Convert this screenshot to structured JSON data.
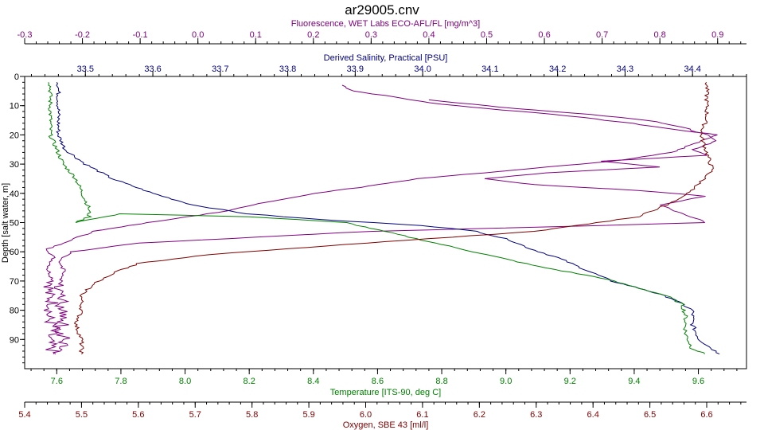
{
  "chart_data": {
    "type": "line",
    "title": "ar29005.cnv",
    "axes": {
      "depth": {
        "label": "Depth [salt water, m]",
        "range": [
          0,
          100
        ],
        "ticks": [
          0,
          10,
          20,
          30,
          40,
          50,
          60,
          70,
          80,
          90
        ],
        "reversed": true,
        "color": "#000000"
      },
      "fluorescence": {
        "label": "Fluorescence, WET Labs ECO-AFL/FL [mg/m^3]",
        "range": [
          -0.3,
          0.95
        ],
        "ticks": [
          -0.3,
          -0.2,
          -0.1,
          0.0,
          0.1,
          0.2,
          0.3,
          0.4,
          0.5,
          0.6,
          0.7,
          0.8,
          0.9
        ],
        "position": "top-outer",
        "color": "#800080"
      },
      "salinity": {
        "label": "Derived Salinity, Practical [PSU]",
        "range": [
          33.41,
          34.48
        ],
        "ticks": [
          33.5,
          33.6,
          33.7,
          33.8,
          33.9,
          34.0,
          34.1,
          34.2,
          34.3,
          34.4
        ],
        "position": "top-inner",
        "color": "#000080"
      },
      "temperature": {
        "label": "Temperature [ITS-90, deg C]",
        "range": [
          7.5,
          9.75
        ],
        "ticks": [
          7.6,
          7.8,
          8.0,
          8.2,
          8.4,
          8.6,
          8.8,
          9.0,
          9.2,
          9.4,
          9.6
        ],
        "position": "bottom-inner",
        "color": "#008000"
      },
      "oxygen": {
        "label": "Oxygen, SBE 43 [ml/l]",
        "range": [
          5.4,
          6.67
        ],
        "ticks": [
          5.4,
          5.5,
          5.6,
          5.7,
          5.8,
          5.9,
          6.0,
          6.1,
          6.2,
          6.3,
          6.4,
          6.5,
          6.6
        ],
        "position": "bottom-outer",
        "color": "#800000"
      }
    },
    "grid": false,
    "legend": "none",
    "series": [
      {
        "axis": "fluorescence",
        "color": "#800080",
        "style": "up",
        "points": [
          [
            0.25,
            3
          ],
          [
            0.27,
            5
          ],
          [
            0.34,
            7
          ],
          [
            0.4,
            9
          ],
          [
            0.5,
            11
          ],
          [
            0.62,
            13
          ],
          [
            0.75,
            16
          ],
          [
            0.82,
            18
          ],
          [
            0.9,
            20
          ],
          [
            0.86,
            23
          ],
          [
            0.82,
            26
          ],
          [
            0.72,
            29
          ],
          [
            0.55,
            32
          ],
          [
            0.38,
            35
          ],
          [
            0.28,
            38
          ],
          [
            0.2,
            40
          ],
          [
            0.12,
            43
          ],
          [
            0.05,
            46
          ],
          [
            -0.05,
            49
          ],
          [
            -0.12,
            51
          ],
          [
            -0.18,
            53
          ],
          [
            -0.22,
            56
          ],
          [
            -0.26,
            59
          ],
          [
            -0.25,
            62
          ],
          [
            -0.26,
            66
          ],
          [
            -0.25,
            70
          ],
          [
            -0.26,
            74
          ],
          [
            -0.25,
            78
          ],
          [
            -0.26,
            82
          ],
          [
            -0.25,
            86
          ],
          [
            -0.26,
            90
          ],
          [
            -0.25,
            95
          ]
        ]
      },
      {
        "axis": "fluorescence",
        "color": "#800080",
        "style": "down",
        "points": [
          [
            -0.25,
            95
          ],
          [
            -0.23,
            91
          ],
          [
            -0.24,
            87
          ],
          [
            -0.23,
            83
          ],
          [
            -0.24,
            79
          ],
          [
            -0.23,
            75
          ],
          [
            -0.24,
            71
          ],
          [
            -0.23,
            67
          ],
          [
            -0.24,
            63
          ],
          [
            -0.22,
            60
          ],
          [
            -0.1,
            57
          ],
          [
            0.1,
            55
          ],
          [
            0.3,
            53
          ],
          [
            0.5,
            52
          ],
          [
            0.7,
            51
          ],
          [
            0.88,
            50
          ],
          [
            0.84,
            47
          ],
          [
            0.8,
            44
          ],
          [
            0.88,
            41
          ],
          [
            0.76,
            39
          ],
          [
            0.58,
            37
          ],
          [
            0.5,
            35
          ],
          [
            0.6,
            33
          ],
          [
            0.8,
            31
          ],
          [
            0.7,
            29
          ],
          [
            0.88,
            27
          ],
          [
            0.86,
            25
          ],
          [
            0.9,
            22
          ],
          [
            0.88,
            20
          ],
          [
            0.85,
            18
          ],
          [
            0.78,
            15
          ],
          [
            0.68,
            13
          ],
          [
            0.55,
            11
          ],
          [
            0.4,
            8
          ]
        ]
      },
      {
        "axis": "salinity",
        "color": "#000080",
        "style": "up",
        "points": [
          [
            33.46,
            2
          ],
          [
            33.46,
            10
          ],
          [
            33.46,
            20
          ],
          [
            33.47,
            25
          ],
          [
            33.5,
            30
          ],
          [
            33.54,
            35
          ],
          [
            33.6,
            40
          ],
          [
            33.66,
            44
          ],
          [
            33.74,
            47
          ],
          [
            33.85,
            49
          ],
          [
            34.0,
            51
          ],
          [
            34.08,
            53
          ],
          [
            34.13,
            56
          ],
          [
            34.16,
            59
          ],
          [
            34.2,
            62
          ],
          [
            34.24,
            66
          ],
          [
            34.28,
            70
          ],
          [
            34.33,
            73
          ],
          [
            34.37,
            76
          ],
          [
            34.4,
            80
          ],
          [
            34.4,
            85
          ],
          [
            34.41,
            90
          ],
          [
            34.44,
            95
          ]
        ]
      },
      {
        "axis": "temperature",
        "color": "#008000",
        "style": "up",
        "points": [
          [
            7.58,
            2
          ],
          [
            7.58,
            10
          ],
          [
            7.58,
            20
          ],
          [
            7.6,
            25
          ],
          [
            7.62,
            30
          ],
          [
            7.66,
            35
          ],
          [
            7.68,
            40
          ],
          [
            7.7,
            45
          ],
          [
            7.7,
            48
          ],
          [
            7.66,
            50
          ],
          [
            7.7,
            49
          ],
          [
            7.8,
            47
          ],
          [
            8.2,
            48
          ],
          [
            8.5,
            50
          ],
          [
            8.7,
            55
          ],
          [
            8.9,
            60
          ],
          [
            9.1,
            65
          ],
          [
            9.3,
            69
          ],
          [
            9.4,
            72
          ],
          [
            9.5,
            75
          ],
          [
            9.55,
            78
          ],
          [
            9.56,
            82
          ],
          [
            9.56,
            88
          ],
          [
            9.58,
            93
          ],
          [
            9.62,
            95
          ]
        ]
      },
      {
        "axis": "oxygen",
        "color": "#800000",
        "style": "up",
        "points": [
          [
            6.6,
            2
          ],
          [
            6.6,
            8
          ],
          [
            6.6,
            14
          ],
          [
            6.59,
            20
          ],
          [
            6.6,
            26
          ],
          [
            6.61,
            32
          ],
          [
            6.58,
            38
          ],
          [
            6.54,
            43
          ],
          [
            6.48,
            48
          ],
          [
            6.3,
            53
          ],
          [
            6.0,
            57
          ],
          [
            5.72,
            61
          ],
          [
            5.6,
            64
          ],
          [
            5.56,
            67
          ],
          [
            5.52,
            71
          ],
          [
            5.5,
            75
          ],
          [
            5.5,
            80
          ],
          [
            5.49,
            85
          ],
          [
            5.5,
            90
          ],
          [
            5.5,
            95
          ]
        ]
      }
    ]
  }
}
